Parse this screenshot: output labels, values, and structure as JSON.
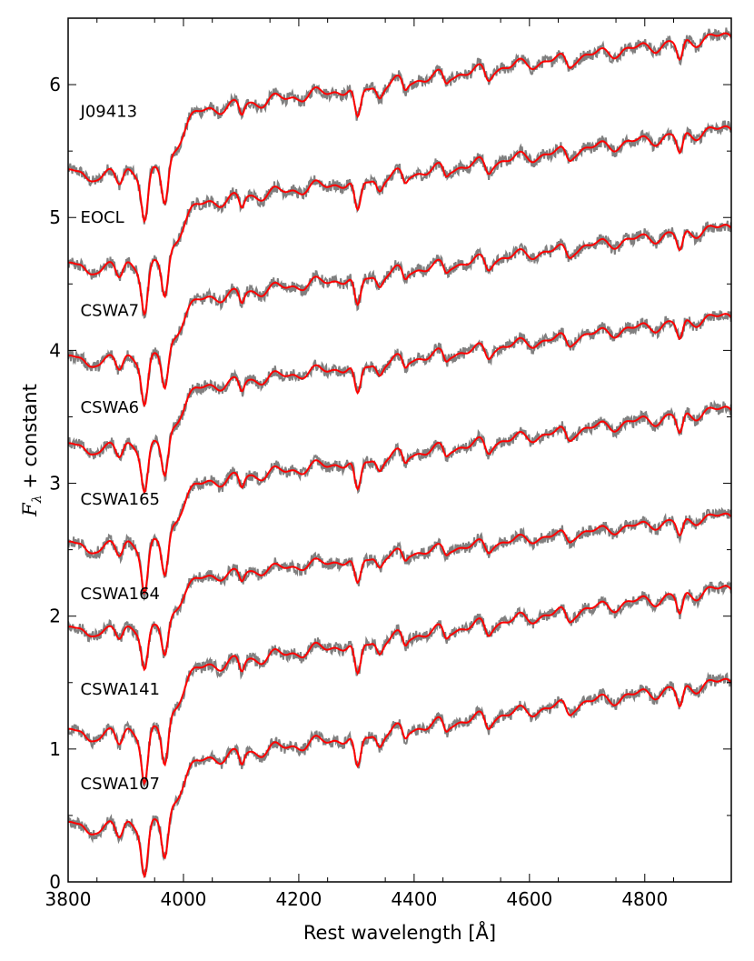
{
  "chart_data": {
    "type": "line",
    "title": "",
    "xlabel": "Rest wavelength [Å]",
    "ylabel": {
      "symbol": "F",
      "subscript": "λ",
      "rest": " + constant"
    },
    "xlim": [
      3800,
      4950
    ],
    "ylim": [
      0,
      6.5
    ],
    "xticks": [
      3800,
      4000,
      4200,
      4400,
      4600,
      4800
    ],
    "yticks": [
      0,
      1,
      2,
      3,
      4,
      5,
      6
    ],
    "grid": false,
    "legend": "none",
    "colors": {
      "observed": "#808080",
      "model": "#ff0000"
    },
    "series": [
      {
        "name": "J09413",
        "offset": 5.3,
        "label_at": [
          3815,
          5.8
        ],
        "endpoints": [
          5.36,
          6.36
        ]
      },
      {
        "name": "EOCL",
        "offset": 4.6,
        "label_at": [
          3815,
          5.0
        ],
        "endpoints": [
          4.66,
          5.66
        ]
      },
      {
        "name": "CSWA7",
        "offset": 3.9,
        "label_at": [
          3815,
          4.3
        ],
        "endpoints": [
          3.96,
          4.92
        ]
      },
      {
        "name": "CSWA6",
        "offset": 3.2,
        "label_at": [
          3815,
          3.57
        ],
        "endpoints": [
          3.3,
          4.25
        ]
      },
      {
        "name": "CSWA165",
        "offset": 2.5,
        "label_at": [
          3815,
          2.88
        ],
        "endpoints": [
          2.56,
          3.55
        ]
      },
      {
        "name": "CSWA164",
        "offset": 1.8,
        "label_at": [
          3815,
          2.17
        ],
        "endpoints": [
          1.92,
          2.75
        ]
      },
      {
        "name": "CSWA141",
        "offset": 1.1,
        "label_at": [
          3815,
          1.45
        ],
        "endpoints": [
          1.15,
          2.2
        ]
      },
      {
        "name": "CSWA107",
        "offset": 0.4,
        "label_at": [
          3815,
          0.74
        ],
        "endpoints": [
          0.45,
          1.5
        ]
      }
    ]
  }
}
